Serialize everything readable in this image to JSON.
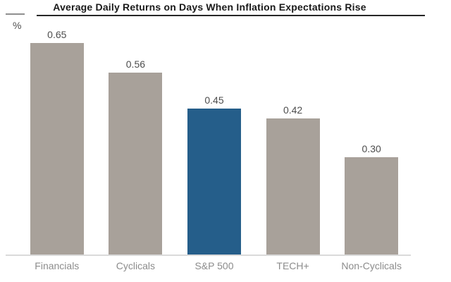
{
  "chart_data": {
    "type": "bar",
    "title": "Average Daily Returns on Days When Inflation Expectations Rise",
    "unit_label": "%",
    "categories": [
      "Financials",
      "Cyclicals",
      "S&P 500",
      "TECH+",
      "Non-Cyclicals"
    ],
    "values": [
      0.65,
      0.56,
      0.45,
      0.42,
      0.3
    ],
    "value_labels": [
      "0.65",
      "0.56",
      "0.45",
      "0.42",
      "0.30"
    ],
    "bar_colors": [
      "#A8A19A",
      "#A8A19A",
      "#255E8A",
      "#A8A19A",
      "#A8A19A"
    ],
    "highlighted_category": "S&P 500",
    "xlabel": "",
    "ylabel": "%",
    "ylim": [
      0,
      0.72
    ],
    "grid": false,
    "legend": "none",
    "colors": {
      "bar_gray": "#A8A19A",
      "bar_highlight_blue": "#255E8A",
      "axis_line": "#DADADA",
      "title_rule": "#262626",
      "title_text": "#1A1A1A",
      "value_label_text": "#4D4D4D",
      "category_label_text": "#8C8C8C"
    }
  }
}
